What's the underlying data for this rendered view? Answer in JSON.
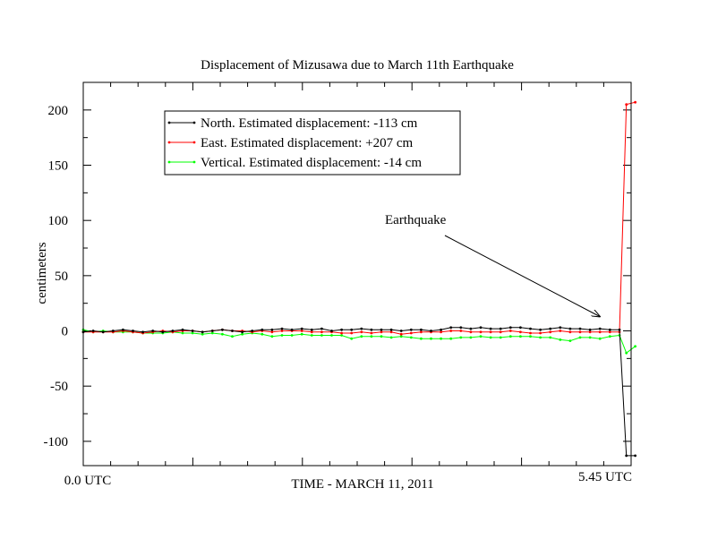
{
  "chart_data": {
    "type": "line",
    "title": "Displacement of Mizusawa due to March 11th Earthquake",
    "xlabel": "TIME - MARCH 11, 2011",
    "ylabel": "centimeters",
    "x_tick_labels": {
      "start": "0.0 UTC",
      "end": "5.45 UTC"
    },
    "xlim": [
      0,
      5.45
    ],
    "ylim": [
      -122,
      225
    ],
    "y_ticks": [
      -100,
      -50,
      0,
      50,
      100,
      150,
      200
    ],
    "annotation": {
      "text": "Earthquake",
      "points_to": [
        5.25,
        13
      ]
    },
    "legend_position": "top-left",
    "grid": false,
    "series": [
      {
        "name": "North. Estimated displacement: -113 cm",
        "color": "#000000",
        "x": [
          0,
          0.101,
          0.202,
          0.303,
          0.404,
          0.505,
          0.606,
          0.707,
          0.808,
          0.909,
          1.01,
          1.111,
          1.212,
          1.313,
          1.414,
          1.515,
          1.616,
          1.717,
          1.818,
          1.919,
          2.02,
          2.121,
          2.222,
          2.323,
          2.424,
          2.525,
          2.626,
          2.727,
          2.828,
          2.929,
          3.03,
          3.131,
          3.232,
          3.333,
          3.434,
          3.535,
          3.636,
          3.737,
          3.838,
          3.939,
          4.04,
          4.141,
          4.242,
          4.343,
          4.444,
          4.545,
          4.646,
          4.747,
          4.848,
          4.949,
          5.05,
          5.151,
          5.252,
          5.353,
          5.45
        ],
        "values": [
          -1,
          0,
          -1,
          0,
          1,
          0,
          -1,
          0,
          -1,
          0,
          1,
          0,
          -1,
          0,
          1,
          0,
          -1,
          0,
          1,
          1,
          2,
          1,
          2,
          1,
          2,
          0,
          1,
          1,
          2,
          1,
          1,
          1,
          0,
          1,
          1,
          0,
          1,
          3,
          3,
          2,
          3,
          2,
          2,
          3,
          3,
          2,
          1,
          2,
          3,
          2,
          2,
          1,
          2,
          1,
          1
        ],
        "post_event": {
          "x": [
            5.45,
            5.52,
            5.61
          ],
          "values": [
            1,
            -113,
            -113
          ]
        }
      },
      {
        "name": "East. Estimated displacement: +207 cm",
        "color": "#ff0000",
        "x": [
          0,
          0.101,
          0.202,
          0.303,
          0.404,
          0.505,
          0.606,
          0.707,
          0.808,
          0.909,
          1.01,
          1.111,
          1.212,
          1.313,
          1.414,
          1.515,
          1.616,
          1.717,
          1.818,
          1.919,
          2.02,
          2.121,
          2.222,
          2.323,
          2.424,
          2.525,
          2.626,
          2.727,
          2.828,
          2.929,
          3.03,
          3.131,
          3.232,
          3.333,
          3.434,
          3.535,
          3.636,
          3.737,
          3.838,
          3.939,
          4.04,
          4.141,
          4.242,
          4.343,
          4.444,
          4.545,
          4.646,
          4.747,
          4.848,
          4.949,
          5.05,
          5.151,
          5.252,
          5.353,
          5.45
        ],
        "values": [
          -1,
          -1,
          -1,
          -1,
          0,
          -1,
          -2,
          -1,
          0,
          -1,
          0,
          0,
          -1,
          0,
          1,
          0,
          0,
          -1,
          0,
          -1,
          0,
          0,
          0,
          -1,
          -1,
          -1,
          -2,
          -2,
          -1,
          -2,
          -1,
          -1,
          -3,
          -2,
          -1,
          -1,
          -1,
          0,
          0,
          -1,
          -1,
          -1,
          -1,
          0,
          -1,
          -2,
          -2,
          -1,
          0,
          -1,
          -1,
          -1,
          -1,
          -1,
          -1
        ],
        "post_event": {
          "x": [
            5.45,
            5.52,
            5.61
          ],
          "values": [
            -1,
            205,
            207
          ]
        }
      },
      {
        "name": "Vertical. Estimated displacement: -14 cm",
        "color": "#00ff00",
        "x": [
          0,
          0.101,
          0.202,
          0.303,
          0.404,
          0.505,
          0.606,
          0.707,
          0.808,
          0.909,
          1.01,
          1.111,
          1.212,
          1.313,
          1.414,
          1.515,
          1.616,
          1.717,
          1.818,
          1.919,
          2.02,
          2.121,
          2.222,
          2.323,
          2.424,
          2.525,
          2.626,
          2.727,
          2.828,
          2.929,
          3.03,
          3.131,
          3.232,
          3.333,
          3.434,
          3.535,
          3.636,
          3.737,
          3.838,
          3.939,
          4.04,
          4.141,
          4.242,
          4.343,
          4.444,
          4.545,
          4.646,
          4.747,
          4.848,
          4.949,
          5.05,
          5.151,
          5.252,
          5.353,
          5.45
        ],
        "values": [
          1,
          -1,
          0,
          -1,
          -1,
          -1,
          -2,
          -2,
          -2,
          -1,
          -2,
          -2,
          -3,
          -2,
          -3,
          -5,
          -3,
          -2,
          -3,
          -5,
          -4,
          -4,
          -3,
          -4,
          -4,
          -4,
          -4,
          -7,
          -5,
          -5,
          -5,
          -6,
          -5,
          -6,
          -7,
          -7,
          -7,
          -7,
          -6,
          -6,
          -5,
          -6,
          -6,
          -5,
          -5,
          -5,
          -6,
          -6,
          -8,
          -9,
          -6,
          -6,
          -7,
          -5,
          -4
        ],
        "post_event": {
          "x": [
            5.45,
            5.52,
            5.61
          ],
          "values": [
            -4,
            -20,
            -14
          ]
        }
      }
    ]
  }
}
